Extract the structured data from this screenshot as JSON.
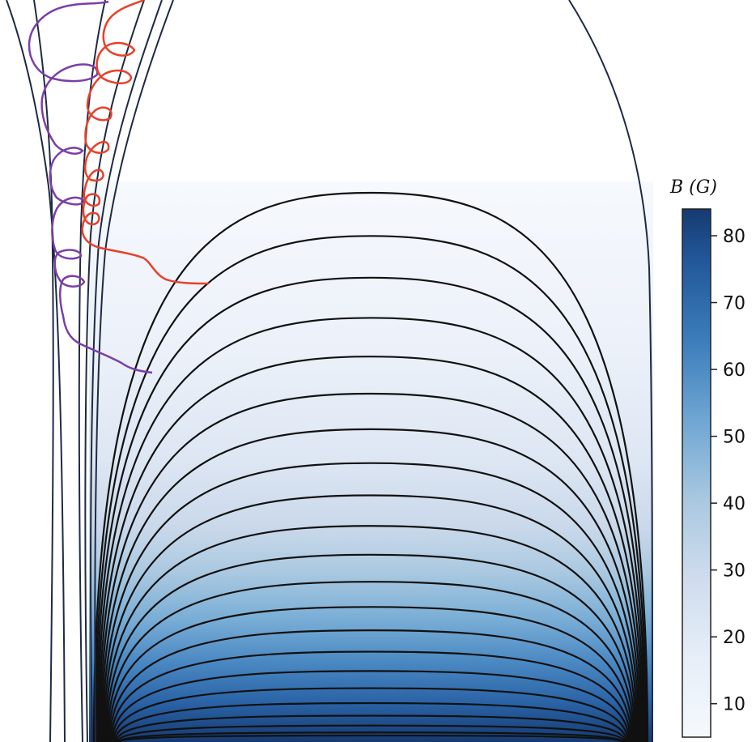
{
  "colorbar": {
    "title": "B (G)",
    "ticks": [
      10,
      20,
      30,
      40,
      50,
      60,
      70,
      80
    ],
    "range": [
      5,
      84
    ],
    "colormap": "Blues",
    "color_low": "#f5f9fd",
    "color_high": "#163a71"
  },
  "field_lines": {
    "count_closed": 22,
    "color": "#111111",
    "open_color": "#1f2a44"
  },
  "trajectories": [
    {
      "name": "",
      "color": "#7b3fa8"
    },
    {
      "name": "",
      "color": "#e8402a"
    }
  ]
}
